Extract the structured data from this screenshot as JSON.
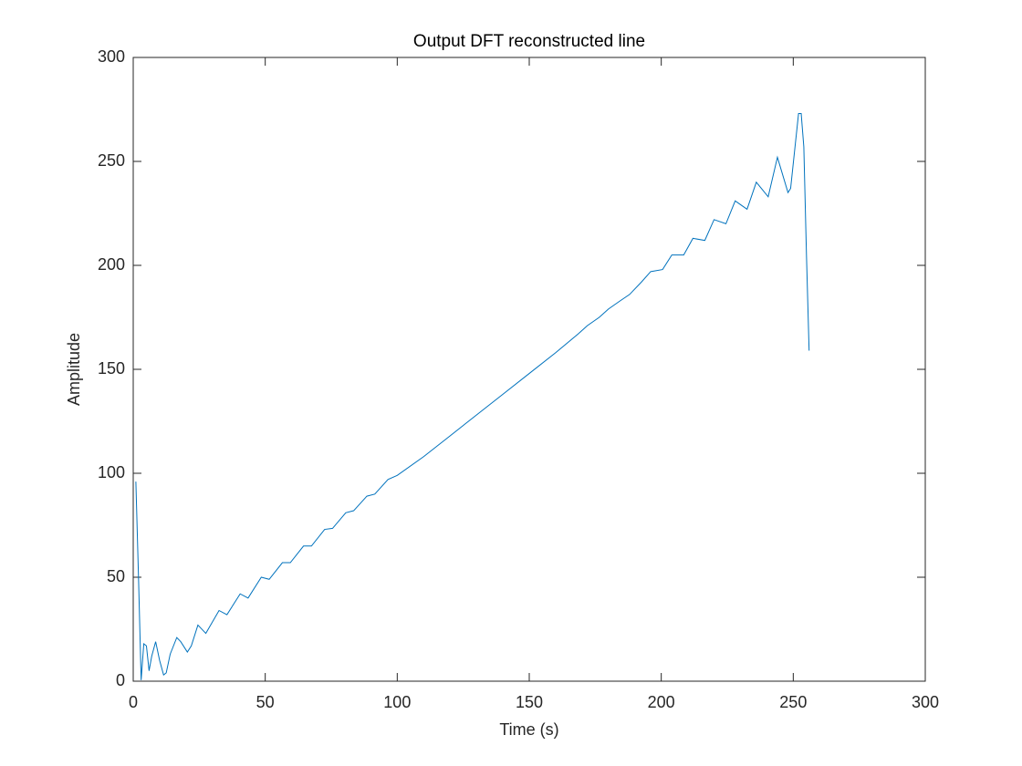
{
  "chart_data": {
    "type": "line",
    "title": "Output DFT reconstructed line",
    "x_label": "Time (s)",
    "y_label": "Amplitude",
    "xlim": [
      0,
      300
    ],
    "ylim": [
      0,
      300
    ],
    "xticks": [
      0,
      50,
      100,
      150,
      200,
      250,
      300
    ],
    "yticks": [
      0,
      50,
      100,
      150,
      200,
      250,
      300
    ],
    "grid": false,
    "series": [
      {
        "color": "#0072bd",
        "x": [
          1,
          2,
          3,
          4,
          5,
          6,
          7,
          8.5,
          10,
          11.5,
          12.5,
          14,
          16.5,
          18,
          20.5,
          22,
          24.5,
          27.5,
          32.5,
          35.5,
          40.5,
          43.5,
          48.5,
          51.5,
          56.5,
          59.5,
          64.5,
          67.5,
          72.5,
          75.5,
          80.5,
          83.5,
          88.5,
          91.5,
          96.5,
          100,
          110,
          120,
          130,
          140,
          150,
          160,
          168.5,
          172,
          176.5,
          180,
          184.5,
          188,
          192.5,
          196,
          200.5,
          204,
          208.5,
          212,
          216.5,
          220,
          224.5,
          228,
          232.5,
          236,
          240.5,
          244,
          248,
          249,
          252,
          253,
          254,
          255,
          256
        ],
        "values": [
          96,
          50,
          0.5,
          18,
          17,
          5,
          12,
          19,
          10,
          3,
          4,
          13,
          21,
          19,
          14,
          17,
          27,
          23,
          34,
          32,
          42,
          40,
          50,
          49,
          57,
          57,
          65,
          65,
          73,
          73.5,
          81,
          82,
          89,
          90,
          97,
          99,
          108,
          118,
          128,
          138,
          148,
          158,
          167,
          171,
          175,
          179,
          183,
          186,
          192,
          197,
          198,
          205,
          205,
          213,
          212,
          222,
          220,
          231,
          227,
          240,
          233,
          252,
          235,
          237,
          273,
          273,
          257,
          205,
          159
        ]
      }
    ]
  }
}
